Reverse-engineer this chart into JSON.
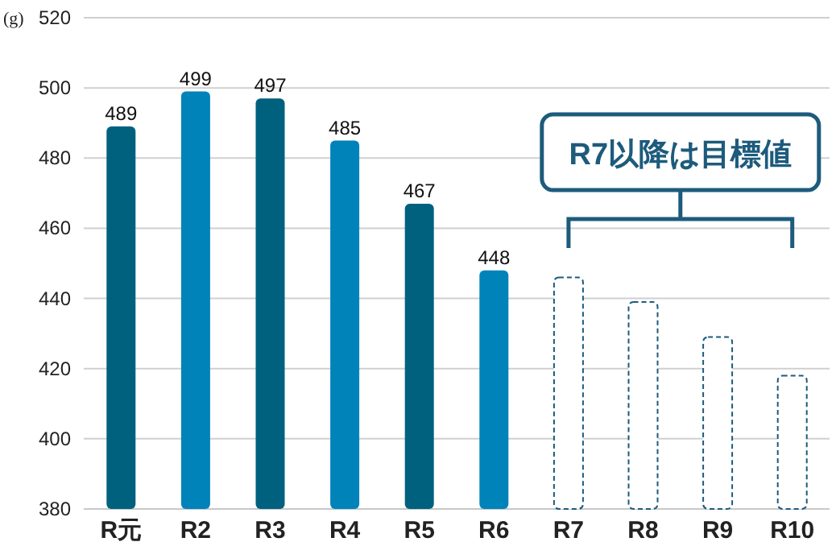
{
  "chart_data": {
    "type": "bar",
    "ylabel": "(g)",
    "categories": [
      "R元",
      "R2",
      "R3",
      "R4",
      "R5",
      "R6",
      "R7",
      "R8",
      "R9",
      "R10"
    ],
    "series": [
      {
        "values": [
          489,
          499,
          497,
          485,
          467,
          448,
          null,
          null,
          null,
          null
        ],
        "colors": [
          "#00617f",
          "#0083b9",
          "#00617f",
          "#0083b9",
          "#00617f",
          "#0083b9",
          null,
          null,
          null,
          null
        ],
        "value_labels": [
          "489",
          "499",
          "497",
          "485",
          "467",
          "448",
          null,
          null,
          null,
          null
        ]
      },
      {
        "values": [
          null,
          null,
          null,
          null,
          null,
          null,
          446,
          439,
          429,
          418
        ],
        "color": "#1d5b7c",
        "line_style": "dashed"
      }
    ],
    "ylim": [
      380,
      520
    ],
    "yticks": [
      380,
      400,
      420,
      440,
      460,
      480,
      500,
      520
    ],
    "grid": "y",
    "annotations": [
      "R7以降は目標値"
    ]
  }
}
